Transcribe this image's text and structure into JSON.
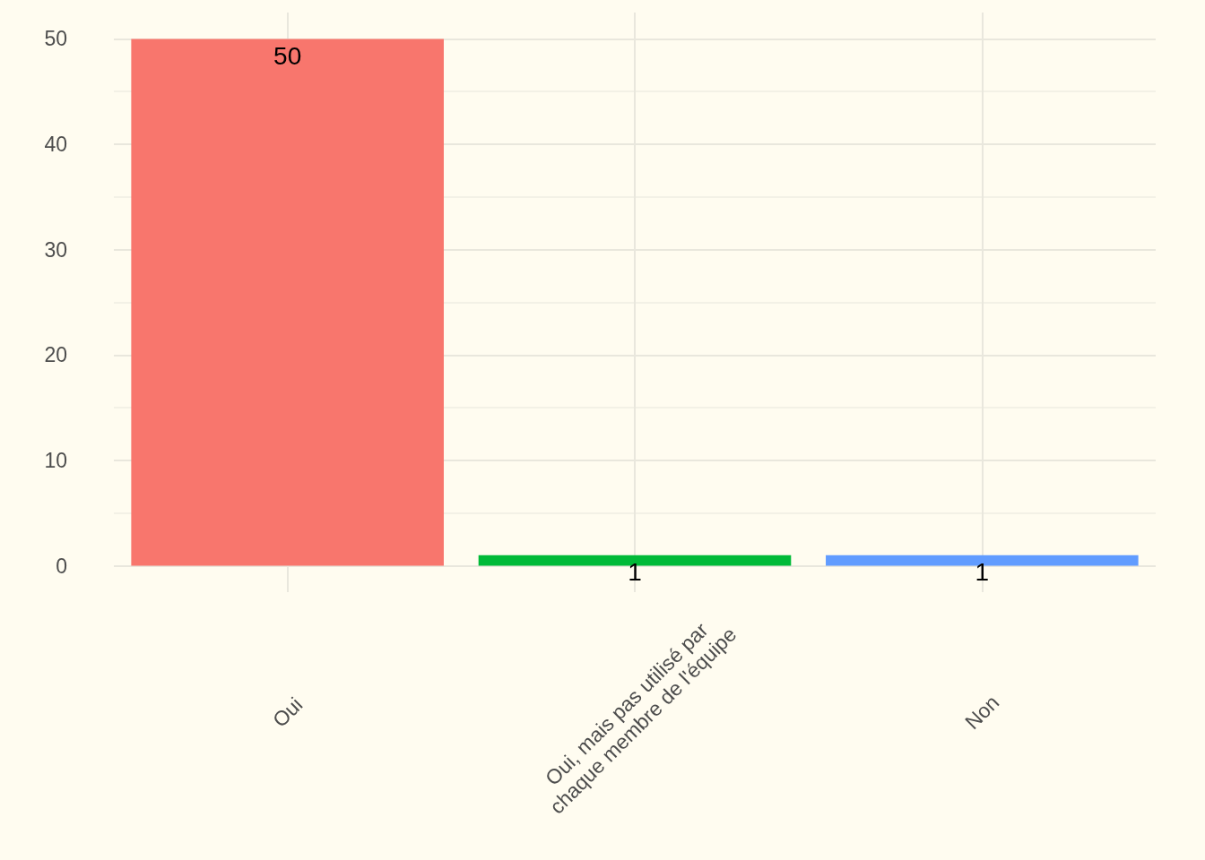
{
  "chart_data": {
    "type": "bar",
    "categories": [
      "Oui",
      "Oui, mais pas utilisé par chaque membre de l'équipe",
      "Non"
    ],
    "values": [
      50,
      1,
      1
    ],
    "colors": [
      "#f8766d",
      "#00ba38",
      "#619cff"
    ],
    "ylim": [
      -2.5,
      52.5
    ],
    "yticks": [
      0,
      {
        "value": 5,
        "label": null
      },
      10,
      {
        "value": 15,
        "label": null
      },
      20,
      {
        "value": 25,
        "label": null
      },
      30,
      {
        "value": 35,
        "label": null
      },
      40,
      {
        "value": 45,
        "label": null
      },
      50
    ],
    "grid": true,
    "data_labels": true
  }
}
